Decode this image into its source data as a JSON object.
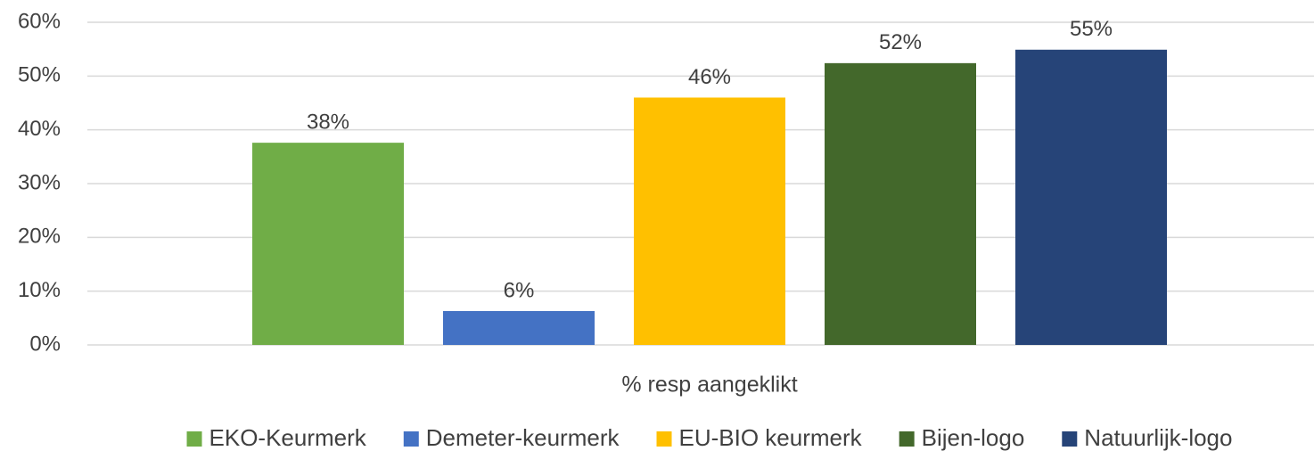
{
  "chart_data": {
    "type": "bar",
    "categories": [
      "% resp aangeklikt"
    ],
    "series": [
      {
        "name": "EKO-Keurmerk",
        "color": "#70ad47",
        "values": [
          37.6
        ],
        "value_labels": [
          "38%"
        ]
      },
      {
        "name": "Demeter-keurmerk",
        "color": "#4472c4",
        "values": [
          6.3
        ],
        "value_labels": [
          "6%"
        ]
      },
      {
        "name": "EU-BIO keurmerk",
        "color": "#ffc000",
        "values": [
          46.0
        ],
        "value_labels": [
          "46%"
        ]
      },
      {
        "name": "Bijen-logo",
        "color": "#43682b",
        "values": [
          52.4
        ],
        "value_labels": [
          "52%"
        ]
      },
      {
        "name": "Natuurlijk-logo",
        "color": "#264478",
        "values": [
          54.9
        ],
        "value_labels": [
          "55%"
        ]
      }
    ],
    "ylim": [
      0,
      60
    ],
    "yticks": [
      {
        "value": 0,
        "label": "0%"
      },
      {
        "value": 10,
        "label": "10%"
      },
      {
        "value": 20,
        "label": "20%"
      },
      {
        "value": 30,
        "label": "30%"
      },
      {
        "value": 40,
        "label": "40%"
      },
      {
        "value": 50,
        "label": "50%"
      },
      {
        "value": 60,
        "label": "60%"
      }
    ],
    "grid": true,
    "legend": "bottom"
  }
}
